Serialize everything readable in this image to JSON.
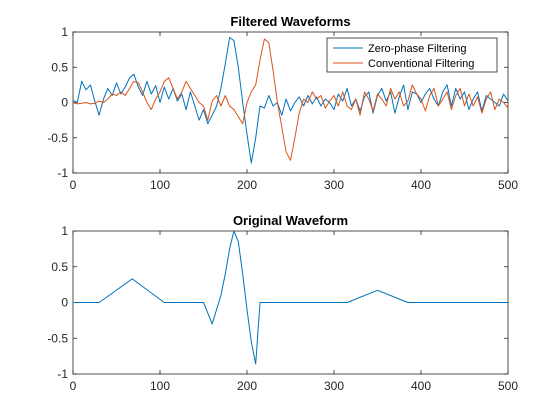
{
  "chart_data": [
    {
      "type": "line",
      "title": "Filtered Waveforms",
      "xlabel": "",
      "ylabel": "",
      "xlim": [
        0,
        500
      ],
      "ylim": [
        -1,
        1
      ],
      "x_ticks": [
        "0",
        "100",
        "200",
        "300",
        "400",
        "500"
      ],
      "y_ticks": [
        "1",
        "0.5",
        "0",
        "-0.5",
        "-1"
      ],
      "grid": false,
      "legend_position": "top-right",
      "series": [
        {
          "name": "Zero-phase Filtering",
          "color": "#0072BD",
          "x": [
            0,
            5,
            10,
            15,
            20,
            25,
            30,
            35,
            40,
            45,
            50,
            55,
            60,
            65,
            70,
            75,
            80,
            85,
            90,
            95,
            100,
            105,
            110,
            115,
            120,
            125,
            130,
            135,
            140,
            145,
            150,
            155,
            160,
            165,
            170,
            175,
            180,
            185,
            190,
            195,
            200,
            205,
            210,
            215,
            220,
            225,
            230,
            235,
            240,
            245,
            250,
            255,
            260,
            265,
            270,
            275,
            280,
            285,
            290,
            295,
            300,
            305,
            310,
            315,
            320,
            325,
            330,
            335,
            340,
            345,
            350,
            355,
            360,
            365,
            370,
            375,
            380,
            385,
            390,
            395,
            400,
            405,
            410,
            415,
            420,
            425,
            430,
            435,
            440,
            445,
            450,
            455,
            460,
            465,
            470,
            475,
            480,
            485,
            490,
            495,
            500
          ],
          "y": [
            0.03,
            0.0,
            0.3,
            0.18,
            0.25,
            0.02,
            -0.18,
            0.05,
            0.2,
            0.1,
            0.28,
            0.12,
            0.22,
            0.35,
            0.4,
            0.22,
            0.1,
            0.3,
            0.12,
            0.24,
            0.0,
            0.22,
            0.05,
            0.2,
            0.02,
            0.12,
            -0.1,
            0.15,
            -0.05,
            -0.25,
            -0.1,
            -0.3,
            -0.18,
            -0.05,
            0.2,
            0.55,
            0.92,
            0.88,
            0.5,
            0.0,
            -0.45,
            -0.86,
            -0.5,
            -0.05,
            -0.08,
            0.1,
            -0.05,
            0.0,
            -0.18,
            0.05,
            -0.12,
            0.0,
            0.08,
            -0.05,
            0.1,
            -0.02,
            0.08,
            -0.05,
            0.05,
            0.0,
            -0.1,
            0.12,
            0.02,
            0.2,
            -0.05,
            0.05,
            -0.12,
            0.08,
            0.15,
            -0.15,
            0.1,
            0.2,
            0.02,
            0.15,
            -0.15,
            0.08,
            0.25,
            -0.1,
            0.15,
            0.12,
            0.0,
            0.12,
            0.2,
            0.05,
            -0.05,
            0.15,
            0.25,
            -0.05,
            0.2,
            0.05,
            0.15,
            -0.1,
            0.05,
            0.15,
            -0.12,
            0.1,
            0.05,
            0.0,
            -0.05,
            0.12,
            0.02
          ]
        },
        {
          "name": "Conventional Filtering",
          "color": "#D95319",
          "x": [
            0,
            5,
            10,
            15,
            20,
            25,
            30,
            35,
            40,
            45,
            50,
            55,
            60,
            65,
            70,
            75,
            80,
            85,
            90,
            95,
            100,
            105,
            110,
            115,
            120,
            125,
            130,
            135,
            140,
            145,
            150,
            155,
            160,
            165,
            170,
            175,
            180,
            185,
            190,
            195,
            200,
            205,
            210,
            215,
            220,
            225,
            230,
            235,
            240,
            245,
            250,
            255,
            260,
            265,
            270,
            275,
            280,
            285,
            290,
            295,
            300,
            305,
            310,
            315,
            320,
            325,
            330,
            335,
            340,
            345,
            350,
            355,
            360,
            365,
            370,
            375,
            380,
            385,
            390,
            395,
            400,
            405,
            410,
            415,
            420,
            425,
            430,
            435,
            440,
            445,
            450,
            455,
            460,
            465,
            470,
            475,
            480,
            485,
            490,
            495,
            500
          ],
          "y": [
            0.0,
            -0.02,
            -0.01,
            0.0,
            -0.02,
            -0.01,
            0.02,
            0.0,
            0.05,
            0.12,
            0.1,
            0.15,
            0.1,
            0.2,
            0.3,
            0.28,
            0.15,
            0.0,
            -0.1,
            0.05,
            0.15,
            0.3,
            0.35,
            0.2,
            0.05,
            0.15,
            0.3,
            0.2,
            0.1,
            0.0,
            -0.05,
            -0.25,
            0.02,
            0.1,
            -0.05,
            0.1,
            -0.05,
            -0.1,
            -0.2,
            -0.3,
            0.0,
            0.15,
            0.25,
            0.6,
            0.9,
            0.85,
            0.45,
            0.0,
            -0.35,
            -0.7,
            -0.82,
            -0.5,
            -0.15,
            0.05,
            0.0,
            0.15,
            0.05,
            0.1,
            -0.08,
            0.02,
            0.1,
            -0.05,
            0.15,
            -0.05,
            -0.1,
            0.05,
            -0.18,
            0.15,
            0.05,
            -0.12,
            0.12,
            0.05,
            -0.05,
            0.2,
            0.05,
            0.15,
            -0.05,
            0.02,
            0.25,
            0.12,
            0.05,
            -0.12,
            0.1,
            0.2,
            -0.05,
            0.05,
            0.15,
            -0.1,
            0.1,
            0.2,
            -0.05,
            0.12,
            -0.05,
            0.08,
            -0.15,
            0.05,
            0.15,
            -0.1,
            0.05,
            0.0,
            -0.08
          ]
        }
      ]
    },
    {
      "type": "line",
      "title": "Original Waveform",
      "xlabel": "",
      "ylabel": "",
      "xlim": [
        0,
        500
      ],
      "ylim": [
        -1,
        1
      ],
      "x_ticks": [
        "0",
        "100",
        "200",
        "300",
        "400",
        "500"
      ],
      "y_ticks": [
        "1",
        "0.5",
        "0",
        "-0.5",
        "-1"
      ],
      "grid": false,
      "series": [
        {
          "color": "#0072BD",
          "x": [
            0,
            30,
            68,
            105,
            150,
            160,
            170,
            175,
            180,
            185,
            190,
            195,
            200,
            205,
            210,
            215,
            315,
            350,
            385,
            500
          ],
          "y": [
            0.0,
            0.0,
            0.33,
            0.0,
            0.0,
            -0.3,
            0.1,
            0.4,
            0.75,
            1.0,
            0.85,
            0.4,
            -0.1,
            -0.55,
            -0.86,
            0.0,
            0.0,
            0.17,
            0.0,
            0.0
          ]
        }
      ]
    }
  ]
}
